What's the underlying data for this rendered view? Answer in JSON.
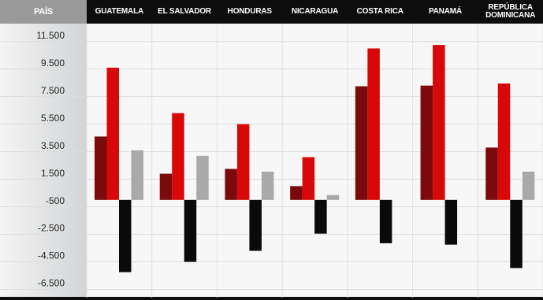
{
  "chart_data": {
    "type": "bar",
    "corner_label": "PAÍS",
    "categories": [
      "GUATEMALA",
      "EL SALVADOR",
      "HONDURAS",
      "NICARAGUA",
      "COSTA RICA",
      "PANAMÁ",
      "REPÚBLICA DOMINICANA"
    ],
    "series": [
      {
        "color": "#7a0a0c",
        "values": [
          4600,
          1900,
          2250,
          1000,
          8250,
          8300,
          3800
        ]
      },
      {
        "color": "#d80808",
        "values": [
          9600,
          6300,
          5500,
          3100,
          11000,
          11250,
          8450
        ]
      },
      {
        "color": "#0a0a0a",
        "values": [
          -5250,
          -4500,
          -3700,
          -2450,
          -3150,
          -3250,
          -4950
        ]
      },
      {
        "color": "#a9a9a9",
        "values": [
          3600,
          3200,
          2050,
          350,
          null,
          null,
          2050
        ]
      }
    ],
    "ylim": [
      -7100,
      12800
    ],
    "yticks": [
      {
        "value": 11500,
        "label": "11.500"
      },
      {
        "value": 9500,
        "label": "9.500"
      },
      {
        "value": 7500,
        "label": "7.500"
      },
      {
        "value": 5500,
        "label": "5.500"
      },
      {
        "value": 3500,
        "label": "3.500"
      },
      {
        "value": 1500,
        "label": "1.500"
      },
      -500,
      {
        "value": -2500,
        "label": "-2.500"
      },
      {
        "value": -4500,
        "label": "-4.500"
      },
      {
        "value": -6500,
        "label": "-6.500"
      }
    ],
    "grid": true
  }
}
